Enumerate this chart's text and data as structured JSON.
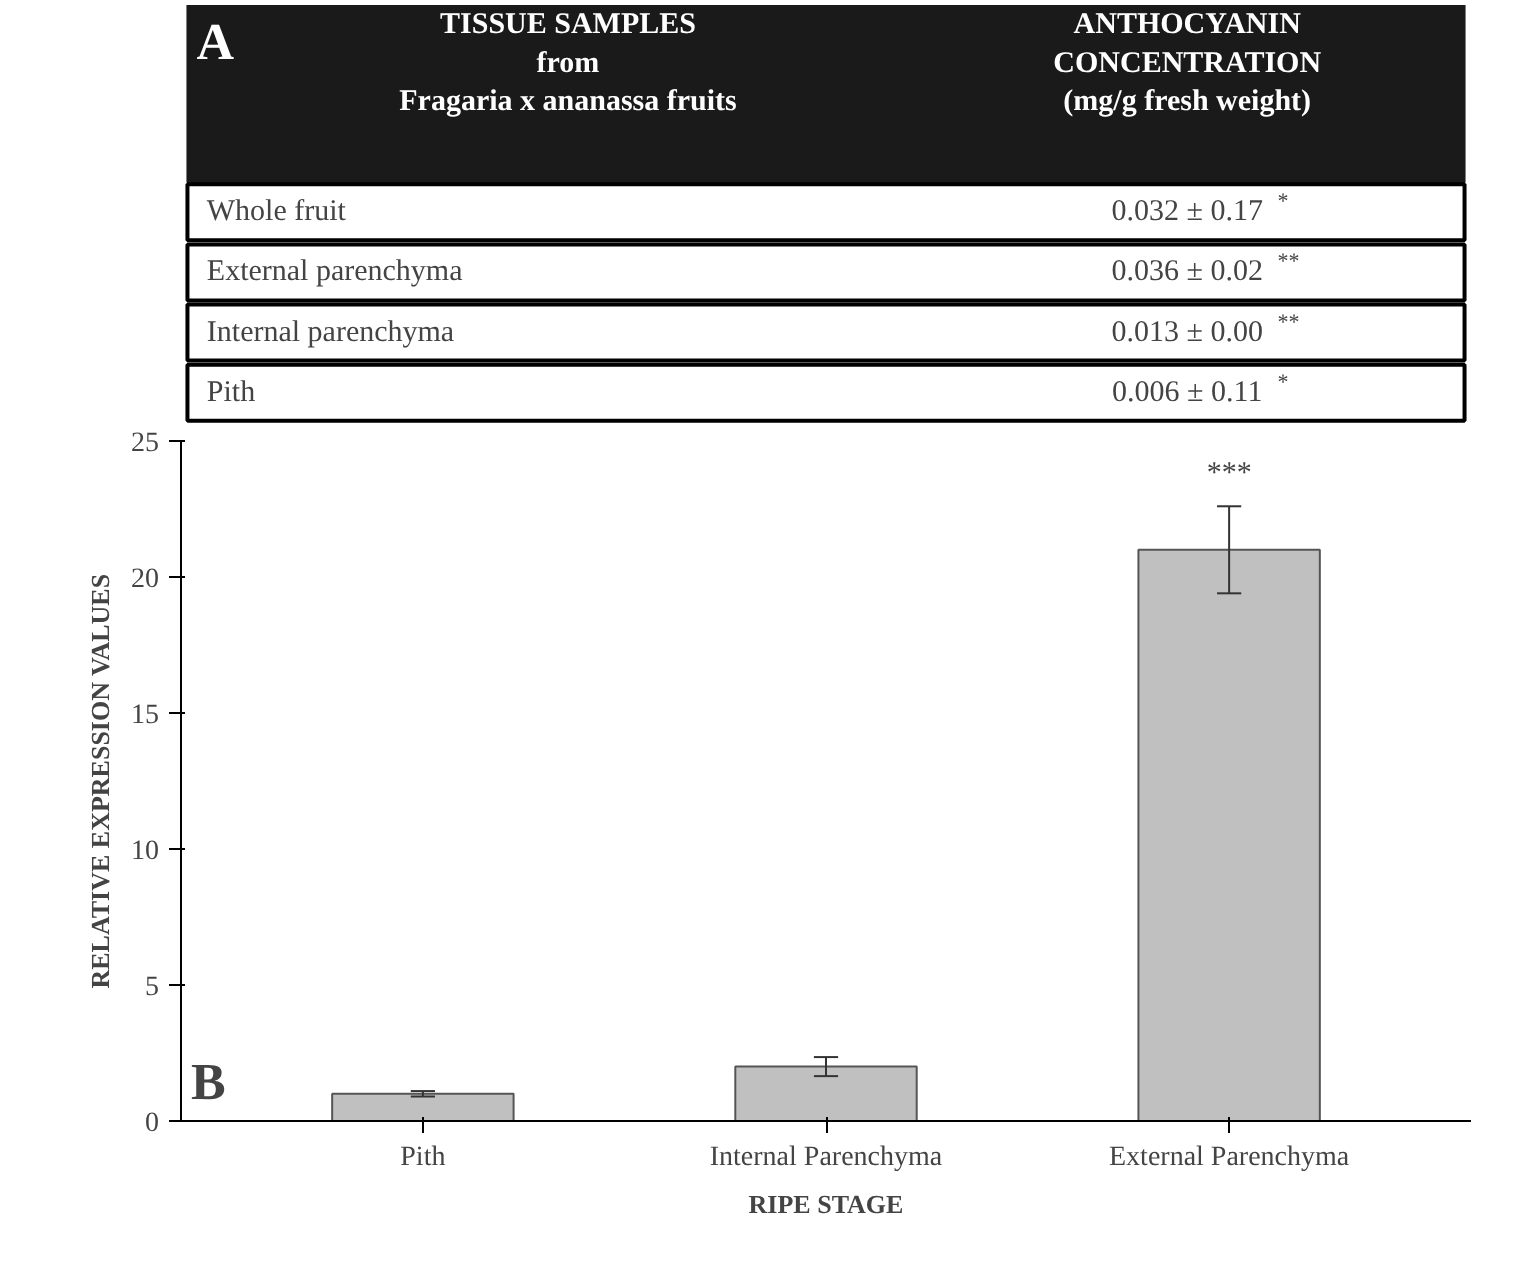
{
  "chart_data": [
    {
      "type": "other",
      "title": "TISSUE SAMPLES\nfrom\nFragaria x ananassa fruits",
      "subtitle": "ANTHOCYANIN\nCONCENTRATION\n(mg/g fresh weight)",
      "annotations": [
        "A"
      ],
      "categories": [
        "Whole fruit",
        "External  parenchyma",
        "Internal parenchyma",
        "Pith"
      ],
      "value_labels": [
        "0.032 ± 0.17$^{*}$",
        "0.036 ± 0.02$^{**}$",
        "0.013 ± 0.00$^{**}$",
        "0.006 ± 0.11$^{*}$"
      ]
    },
    {
      "type": "bar",
      "xlabel": "RIPE STAGE",
      "ylabel": "RELATIVE EXPRESSION VALUES",
      "categories": [
        "Pith",
        "Internal Parenchyma",
        "External Parenchyma"
      ],
      "values": [
        1.0,
        2.0,
        21.0
      ],
      "errors": [
        0.1,
        0.35,
        1.6
      ],
      "color": "#c0c0c0",
      "ylim": [
        0,
        25
      ],
      "yticks": [
        0,
        5,
        10,
        15,
        20,
        25
      ],
      "grid": false,
      "annotations": [
        "***",
        "B"
      ]
    }
  ]
}
